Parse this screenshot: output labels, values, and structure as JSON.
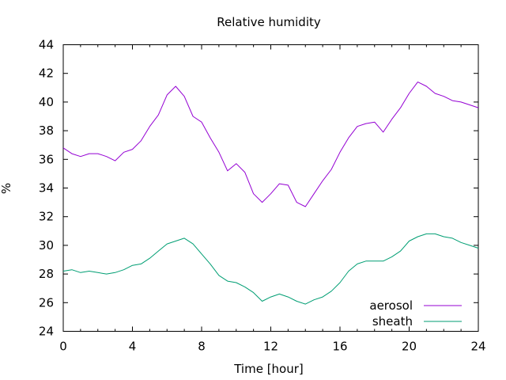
{
  "chart_data": {
    "type": "line",
    "title": "Relative humidity",
    "xlabel": "Time [hour]",
    "ylabel": "%",
    "xlim": [
      0,
      24
    ],
    "ylim": [
      24,
      44
    ],
    "xticks": [
      0,
      4,
      8,
      12,
      16,
      20,
      24
    ],
    "yticks": [
      24,
      26,
      28,
      30,
      32,
      34,
      36,
      38,
      40,
      42,
      44
    ],
    "grid": false,
    "legend_position": "bottom-right",
    "series": [
      {
        "name": "aerosol",
        "color": "#9400d3",
        "x": [
          0,
          0.5,
          1,
          1.5,
          2,
          2.5,
          3,
          3.5,
          4,
          4.5,
          5,
          5.5,
          6,
          6.5,
          7,
          7.5,
          8,
          8.5,
          9,
          9.5,
          10,
          10.5,
          11,
          11.5,
          12,
          12.5,
          13,
          13.5,
          14,
          14.5,
          15,
          15.5,
          16,
          16.5,
          17,
          17.5,
          18,
          18.5,
          19,
          19.5,
          20,
          20.5,
          21,
          21.5,
          22,
          22.5,
          23,
          23.5,
          24
        ],
        "values": [
          36.8,
          36.4,
          36.2,
          36.4,
          36.4,
          36.2,
          35.9,
          36.5,
          36.7,
          37.3,
          38.3,
          39.1,
          40.5,
          41.1,
          40.4,
          39.0,
          38.6,
          37.5,
          36.5,
          35.2,
          35.7,
          35.1,
          33.6,
          33.0,
          33.6,
          34.3,
          34.2,
          33.0,
          32.7,
          33.6,
          34.5,
          35.3,
          36.5,
          37.5,
          38.3,
          38.5,
          38.6,
          37.9,
          38.8,
          39.6,
          40.6,
          41.4,
          41.1,
          40.6,
          40.4,
          40.1,
          40.0,
          39.8,
          39.6
        ]
      },
      {
        "name": "sheath",
        "color": "#009e73",
        "x": [
          0,
          0.5,
          1,
          1.5,
          2,
          2.5,
          3,
          3.5,
          4,
          4.5,
          5,
          5.5,
          6,
          6.5,
          7,
          7.5,
          8,
          8.5,
          9,
          9.5,
          10,
          10.5,
          11,
          11.5,
          12,
          12.5,
          13,
          13.5,
          14,
          14.5,
          15,
          15.5,
          16,
          16.5,
          17,
          17.5,
          18,
          18.5,
          19,
          19.5,
          20,
          20.5,
          21,
          21.5,
          22,
          22.5,
          23,
          23.5,
          24
        ],
        "values": [
          28.2,
          28.3,
          28.1,
          28.2,
          28.1,
          28.0,
          28.1,
          28.3,
          28.6,
          28.7,
          29.1,
          29.6,
          30.1,
          30.3,
          30.5,
          30.1,
          29.4,
          28.7,
          27.9,
          27.5,
          27.4,
          27.1,
          26.7,
          26.1,
          26.4,
          26.6,
          26.4,
          26.1,
          25.9,
          26.2,
          26.4,
          26.8,
          27.4,
          28.2,
          28.7,
          28.9,
          28.9,
          28.9,
          29.2,
          29.6,
          30.3,
          30.6,
          30.8,
          30.8,
          30.6,
          30.5,
          30.2,
          30.0,
          29.8
        ]
      }
    ]
  }
}
